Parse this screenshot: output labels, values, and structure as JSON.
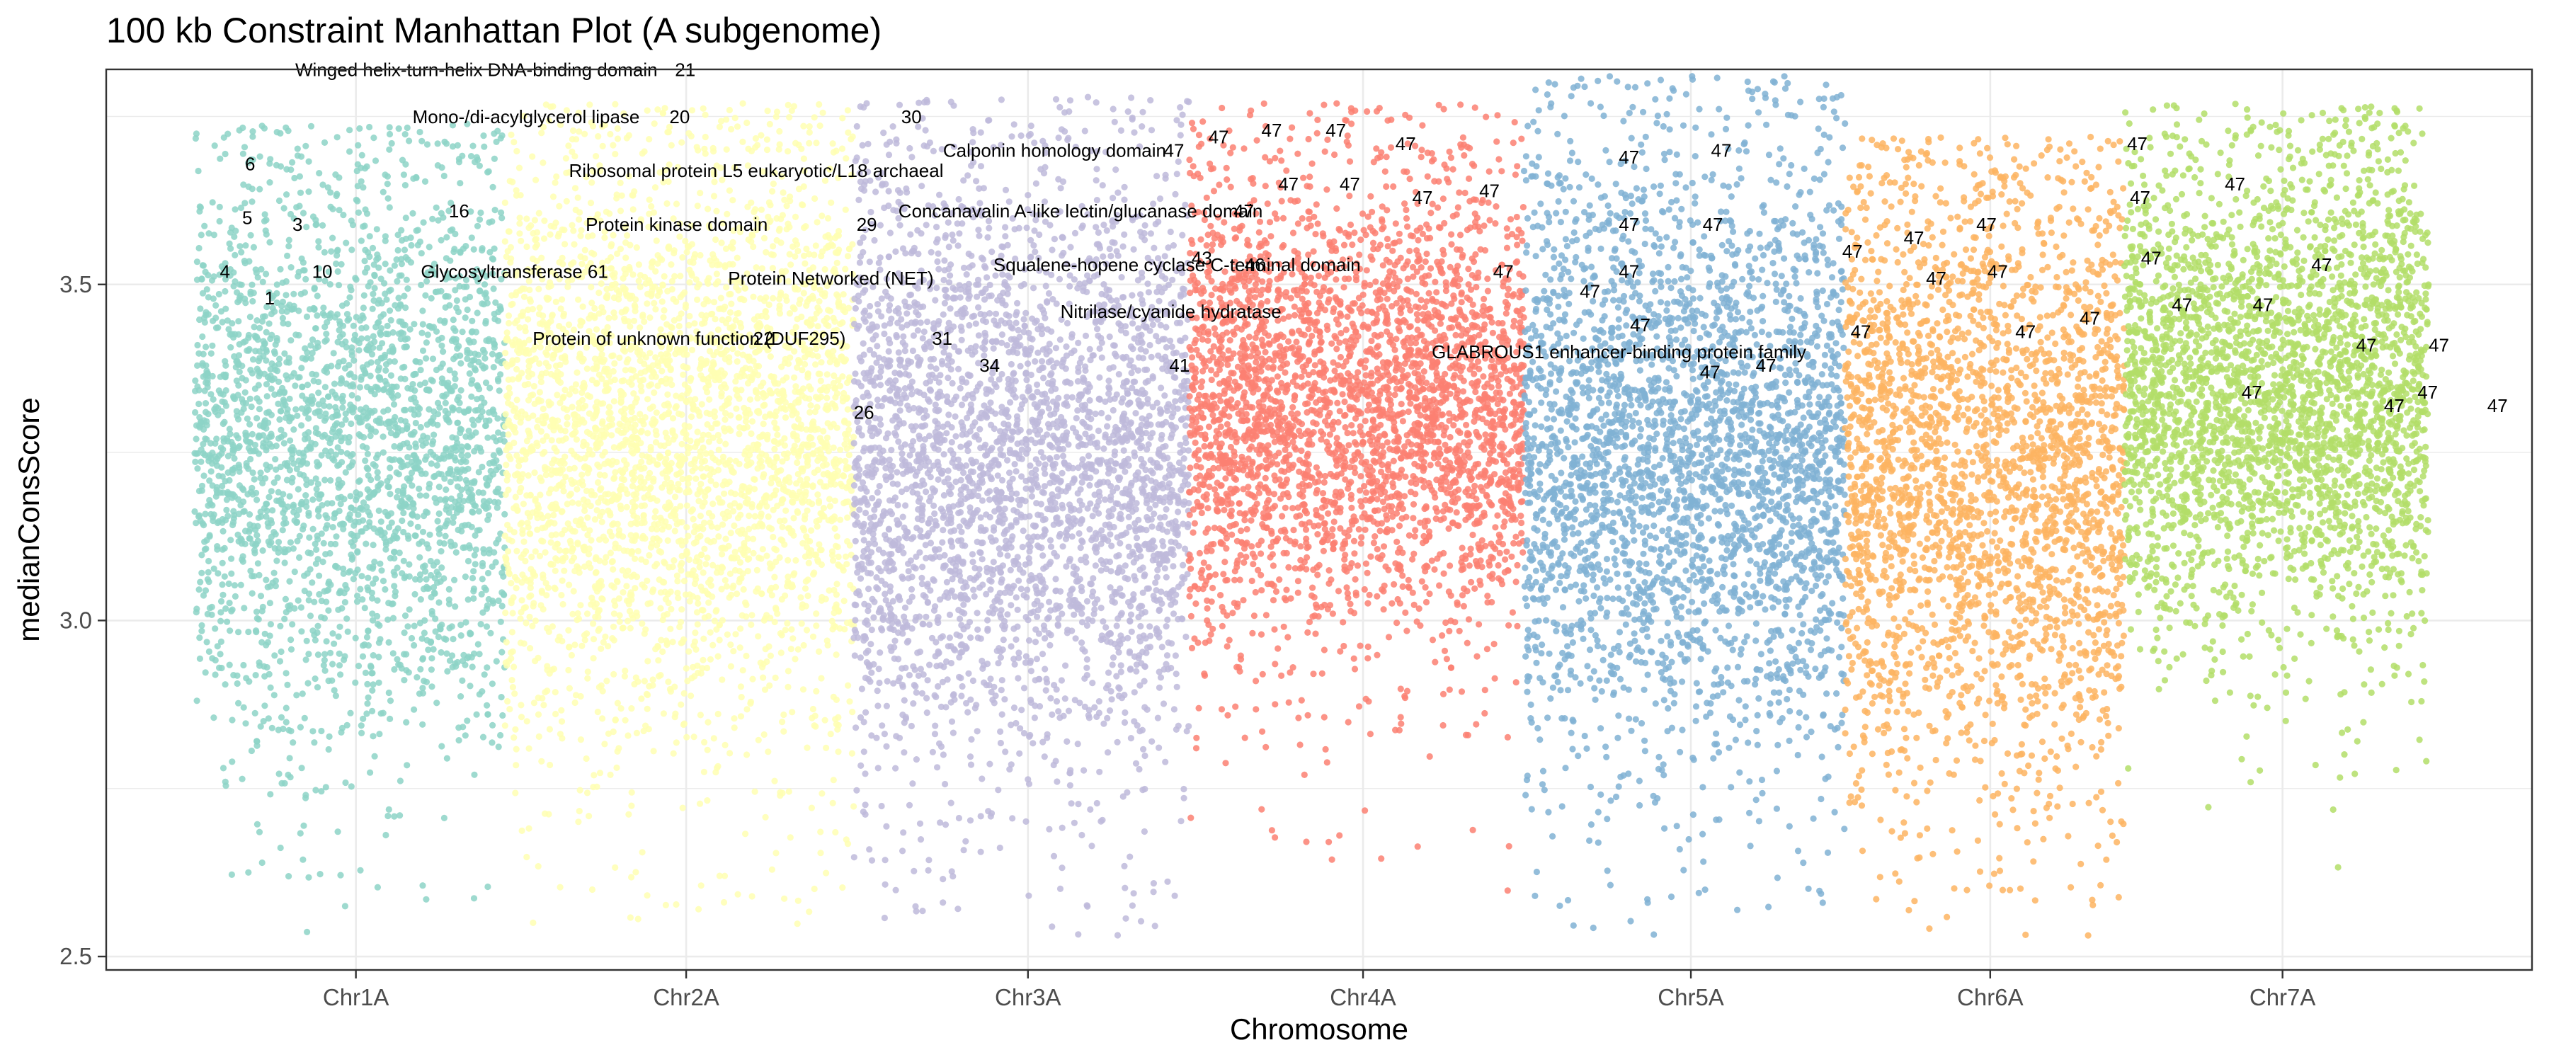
{
  "chart_data": {
    "type": "scatter",
    "title": "100 kb Constraint Manhattan Plot (A subgenome)",
    "xlabel": "Chromosome",
    "ylabel": "medianConsScore",
    "ylim": [
      2.48,
      3.82
    ],
    "yticks": [
      2.5,
      3.0,
      3.5
    ],
    "grid": true,
    "legend": "none",
    "categories": [
      "Chr1A",
      "Chr2A",
      "Chr3A",
      "Chr4A",
      "Chr5A",
      "Chr6A",
      "Chr7A"
    ],
    "series": [
      {
        "category": "Chr1A",
        "color": "#8DD3C7",
        "points": 2600,
        "center": 3.27,
        "spread": 0.21,
        "min": 2.52,
        "max": 3.74
      },
      {
        "category": "Chr2A",
        "color": "#FFFFB3",
        "points": 3300,
        "center": 3.27,
        "spread": 0.21,
        "min": 2.54,
        "max": 3.77
      },
      {
        "category": "Chr3A",
        "color": "#BEBADA",
        "points": 3300,
        "center": 3.23,
        "spread": 0.22,
        "min": 2.53,
        "max": 3.78
      },
      {
        "category": "Chr4A",
        "color": "#FB8072",
        "points": 3200,
        "center": 3.32,
        "spread": 0.17,
        "min": 2.59,
        "max": 3.77
      },
      {
        "category": "Chr5A",
        "color": "#80B1D3",
        "points": 3100,
        "center": 3.25,
        "spread": 0.22,
        "min": 2.52,
        "max": 3.81
      },
      {
        "category": "Chr6A",
        "color": "#FDB462",
        "points": 2700,
        "center": 3.22,
        "spread": 0.23,
        "min": 2.53,
        "max": 3.72
      },
      {
        "category": "Chr7A",
        "color": "#B3DE69",
        "points": 3100,
        "center": 3.34,
        "spread": 0.17,
        "min": 2.6,
        "max": 3.77
      }
    ],
    "annotations": [
      {
        "text": "Winged helix-turn-helix DNA-binding domain",
        "x": 0.36,
        "y": 3.81
      },
      {
        "text": "21",
        "x": 1.72,
        "y": 3.81
      },
      {
        "text": "Mono-/di-acylglycerol lipase",
        "x": 0.78,
        "y": 3.74
      },
      {
        "text": "20",
        "x": 1.7,
        "y": 3.74
      },
      {
        "text": "30",
        "x": 2.53,
        "y": 3.74
      },
      {
        "text": "6",
        "x": 0.18,
        "y": 3.67
      },
      {
        "text": "Ribosomal protein L5 eukaryotic/L18 archaeal",
        "x": 1.34,
        "y": 3.66
      },
      {
        "text": "Calponin homology domain",
        "x": 2.68,
        "y": 3.69
      },
      {
        "text": "47",
        "x": 3.47,
        "y": 3.69
      },
      {
        "text": "47",
        "x": 3.63,
        "y": 3.71
      },
      {
        "text": "47",
        "x": 3.82,
        "y": 3.72
      },
      {
        "text": "47",
        "x": 4.05,
        "y": 3.72
      },
      {
        "text": "47",
        "x": 4.3,
        "y": 3.7
      },
      {
        "text": "47",
        "x": 5.1,
        "y": 3.68
      },
      {
        "text": "47",
        "x": 5.43,
        "y": 3.69
      },
      {
        "text": "47",
        "x": 6.92,
        "y": 3.7
      },
      {
        "text": "5",
        "x": 0.17,
        "y": 3.59
      },
      {
        "text": "3",
        "x": 0.35,
        "y": 3.58
      },
      {
        "text": "16",
        "x": 0.91,
        "y": 3.6
      },
      {
        "text": "Protein kinase domain",
        "x": 1.4,
        "y": 3.58
      },
      {
        "text": "29",
        "x": 2.37,
        "y": 3.58
      },
      {
        "text": "Concanavalin A-like lectin/glucanase domain",
        "x": 2.52,
        "y": 3.6
      },
      {
        "text": "47",
        "x": 3.72,
        "y": 3.6
      },
      {
        "text": "47",
        "x": 3.88,
        "y": 3.64
      },
      {
        "text": "47",
        "x": 4.1,
        "y": 3.64
      },
      {
        "text": "47",
        "x": 4.36,
        "y": 3.62
      },
      {
        "text": "47",
        "x": 4.6,
        "y": 3.63
      },
      {
        "text": "47",
        "x": 5.1,
        "y": 3.58
      },
      {
        "text": "47",
        "x": 5.4,
        "y": 3.58
      },
      {
        "text": "47",
        "x": 6.12,
        "y": 3.56
      },
      {
        "text": "47",
        "x": 6.38,
        "y": 3.58
      },
      {
        "text": "47",
        "x": 6.93,
        "y": 3.62
      },
      {
        "text": "47",
        "x": 7.27,
        "y": 3.64
      },
      {
        "text": "4",
        "x": 0.09,
        "y": 3.51
      },
      {
        "text": "10",
        "x": 0.42,
        "y": 3.51
      },
      {
        "text": "Glycosyltransferase 61",
        "x": 0.81,
        "y": 3.51
      },
      {
        "text": "Protein Networked (NET)",
        "x": 1.91,
        "y": 3.5
      },
      {
        "text": "Squalene-hopene cyclase C-terminal domain",
        "x": 2.86,
        "y": 3.52
      },
      {
        "text": "43",
        "x": 3.57,
        "y": 3.53
      },
      {
        "text": "46",
        "x": 3.76,
        "y": 3.52
      },
      {
        "text": "47",
        "x": 4.65,
        "y": 3.51
      },
      {
        "text": "47",
        "x": 4.96,
        "y": 3.48
      },
      {
        "text": "47",
        "x": 5.1,
        "y": 3.51
      },
      {
        "text": "47",
        "x": 5.9,
        "y": 3.54
      },
      {
        "text": "47",
        "x": 6.2,
        "y": 3.5
      },
      {
        "text": "47",
        "x": 6.42,
        "y": 3.51
      },
      {
        "text": "47",
        "x": 6.97,
        "y": 3.53
      },
      {
        "text": "47",
        "x": 7.08,
        "y": 3.46
      },
      {
        "text": "47",
        "x": 7.37,
        "y": 3.46
      },
      {
        "text": "47",
        "x": 7.58,
        "y": 3.52
      },
      {
        "text": "1",
        "x": 0.25,
        "y": 3.47
      },
      {
        "text": "Nitrilase/cyanide hydratase",
        "x": 3.1,
        "y": 3.45
      },
      {
        "text": "47",
        "x": 5.14,
        "y": 3.43
      },
      {
        "text": "47",
        "x": 6.52,
        "y": 3.42
      },
      {
        "text": "47",
        "x": 6.75,
        "y": 3.44
      },
      {
        "text": "Protein of unknown function (DUF295)",
        "x": 1.21,
        "y": 3.41
      },
      {
        "text": "22",
        "x": 2.0,
        "y": 3.41
      },
      {
        "text": "31",
        "x": 2.64,
        "y": 3.41
      },
      {
        "text": "GLABROUS1 enhancer-binding protein family",
        "x": 4.43,
        "y": 3.39
      },
      {
        "text": "47",
        "x": 7.74,
        "y": 3.4
      },
      {
        "text": "47",
        "x": 8.0,
        "y": 3.4
      },
      {
        "text": "34",
        "x": 2.81,
        "y": 3.37
      },
      {
        "text": "41",
        "x": 3.49,
        "y": 3.37
      },
      {
        "text": "47",
        "x": 5.39,
        "y": 3.36
      },
      {
        "text": "47",
        "x": 5.59,
        "y": 3.37
      },
      {
        "text": "47",
        "x": 7.96,
        "y": 3.33
      },
      {
        "text": "47",
        "x": 5.93,
        "y": 3.42
      },
      {
        "text": "47",
        "x": 7.84,
        "y": 3.31
      },
      {
        "text": "47",
        "x": 8.21,
        "y": 3.31
      },
      {
        "text": "47",
        "x": 7.33,
        "y": 3.33
      },
      {
        "text": "26",
        "x": 2.36,
        "y": 3.3
      }
    ]
  }
}
